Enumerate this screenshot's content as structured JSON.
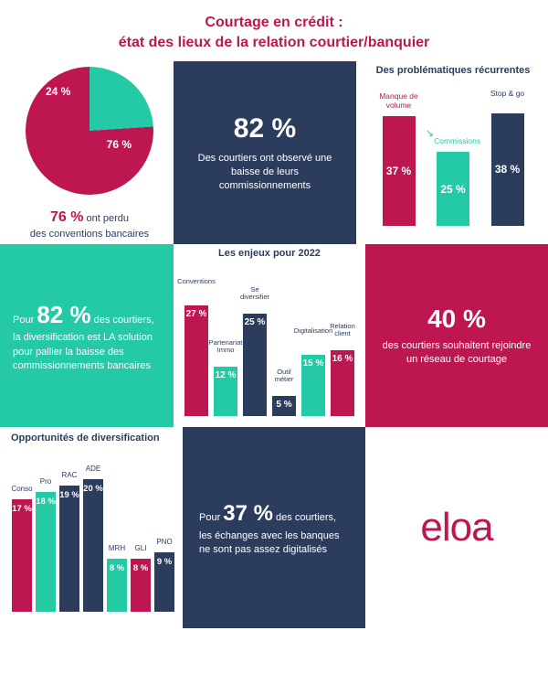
{
  "colors": {
    "magenta": "#be1651",
    "navy": "#2b3c5d",
    "teal": "#24c9a6",
    "text": "#2b3c5d",
    "white": "#ffffff"
  },
  "title": {
    "line1": "Courtage en crédit :",
    "line2": "état des lieux de la relation courtier/banquier"
  },
  "pie": {
    "slice1": {
      "value": 76,
      "label": "76 %",
      "color": "#be1651"
    },
    "slice2": {
      "value": 24,
      "label": "24 %",
      "color": "#24c9a6"
    },
    "caption_big": "76 %",
    "caption_rest": " ont perdu",
    "caption_line2": "des conventions bancaires"
  },
  "center82": {
    "value": "82 %",
    "text": "Des courtiers ont observé une baisse de leurs commissionnements",
    "bg": "#2b3c5d"
  },
  "problems": {
    "title": "Des problématiques récurrentes",
    "max": 40,
    "items": [
      {
        "label": "Manque de volume",
        "value": 37,
        "display": "37 %",
        "color": "#be1651",
        "lblcolor": "#be1651"
      },
      {
        "label": "Commissions",
        "value": 25,
        "display": "25 %",
        "color": "#24c9a6",
        "lblcolor": "#24c9a6",
        "arrow": "↘"
      },
      {
        "label": "Stop & go",
        "value": 38,
        "display": "38 %",
        "color": "#2b3c5d",
        "lblcolor": "#2b3c5d"
      }
    ]
  },
  "diversif": {
    "pre": "Pour ",
    "big": "82 %",
    "post": " des courtiers",
    "rest": ", la diversification est LA solution pour pallier la baisse des commissionnements bancaires",
    "bg": "#24c9a6"
  },
  "enjeux": {
    "title": "Les enjeux pour 2022",
    "max": 30,
    "items": [
      {
        "label": "Conventions",
        "value": 27,
        "display": "27 %",
        "color": "#be1651"
      },
      {
        "label": "Partenariat Immo",
        "value": 12,
        "display": "12 %",
        "color": "#24c9a6"
      },
      {
        "label": "Se diversifier",
        "value": 25,
        "display": "25 %",
        "color": "#2b3c5d"
      },
      {
        "label": "Outil métier",
        "value": 5,
        "display": "5 %",
        "color": "#2b3c5d"
      },
      {
        "label": "Digitalisation",
        "value": 15,
        "display": "15 %",
        "color": "#24c9a6"
      },
      {
        "label": "Relation client",
        "value": 16,
        "display": "16 %",
        "color": "#be1651"
      }
    ]
  },
  "network": {
    "value": "40 %",
    "text": "des courtiers souhaitent rejoindre un réseau de courtage",
    "bg": "#be1651"
  },
  "opp": {
    "title": "Opportunités de diversification",
    "max": 22,
    "items": [
      {
        "label": "Conso",
        "value": 17,
        "display": "17 %",
        "color": "#be1651"
      },
      {
        "label": "Pro",
        "value": 18,
        "display": "18 %",
        "color": "#24c9a6"
      },
      {
        "label": "RAC",
        "value": 19,
        "display": "19 %",
        "color": "#2b3c5d"
      },
      {
        "label": "ADE",
        "value": 20,
        "display": "20 %",
        "color": "#2b3c5d"
      },
      {
        "label": "MRH",
        "value": 8,
        "display": "8 %",
        "color": "#24c9a6"
      },
      {
        "label": "GLI",
        "value": 8,
        "display": "8 %",
        "color": "#be1651"
      },
      {
        "label": "PNO",
        "value": 9,
        "display": "9 %",
        "color": "#2b3c5d"
      }
    ]
  },
  "digital": {
    "pre": "Pour ",
    "big": "37 %",
    "post": " des courtiers,",
    "rest": "les échanges avec les banques ne sont pas assez digitalisés",
    "bg": "#2b3c5d"
  },
  "logo": {
    "text": "eloa",
    "color": "#be1651"
  }
}
